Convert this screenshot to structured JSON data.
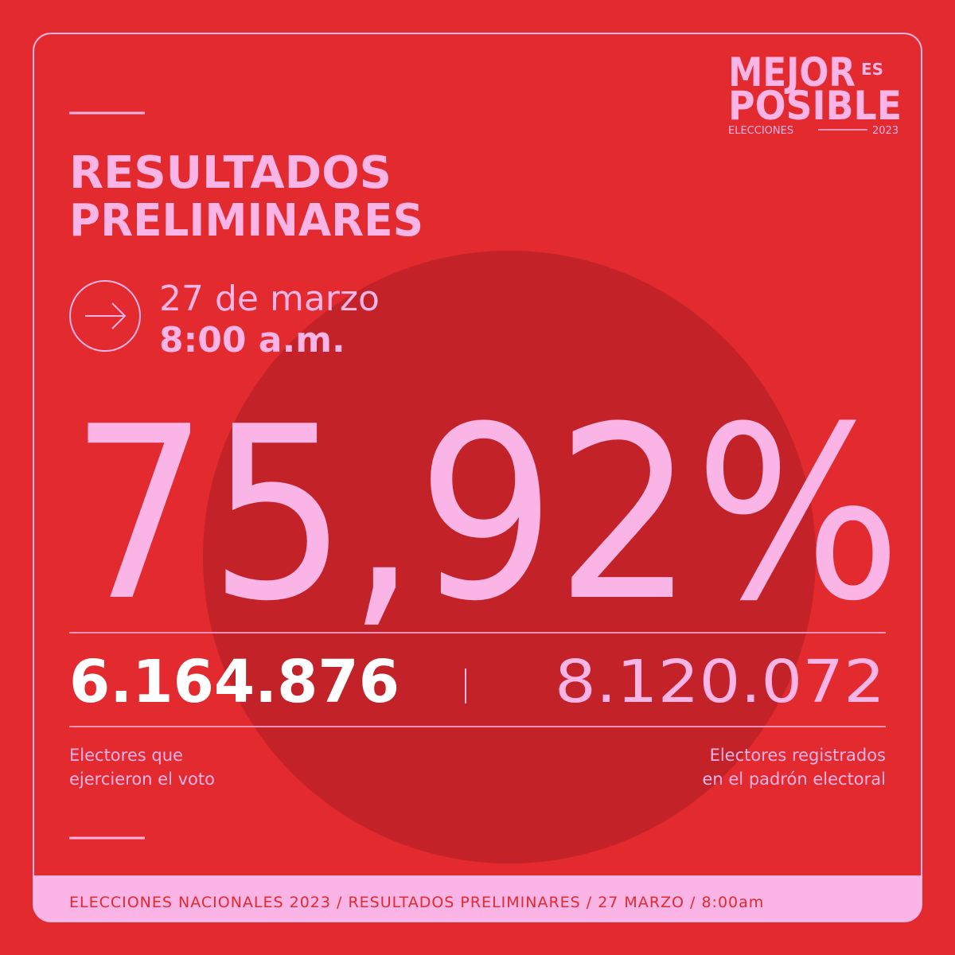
{
  "logo": {
    "line1": "MEJOR",
    "small": "ES",
    "line2": "POSIBLE",
    "subtitle": "ELECCIONES",
    "year": "2023"
  },
  "title": [
    "RESULTADOS",
    "PRELIMINARES"
  ],
  "date": {
    "day": "27 de marzo",
    "time": "8:00 a.m."
  },
  "headline": "75,92%",
  "stats": [
    {
      "number": "6.164.876",
      "label": [
        "Electores que",
        "ejercieron el voto"
      ]
    },
    {
      "number": "8.120.072",
      "label": [
        "Electores registrados",
        "en el padrón electoral"
      ]
    }
  ],
  "footer": "ELECCIONES NACIONALES 2023 / RESULTADOS PRELIMINARES / 27 MARZO / 8:00am"
}
